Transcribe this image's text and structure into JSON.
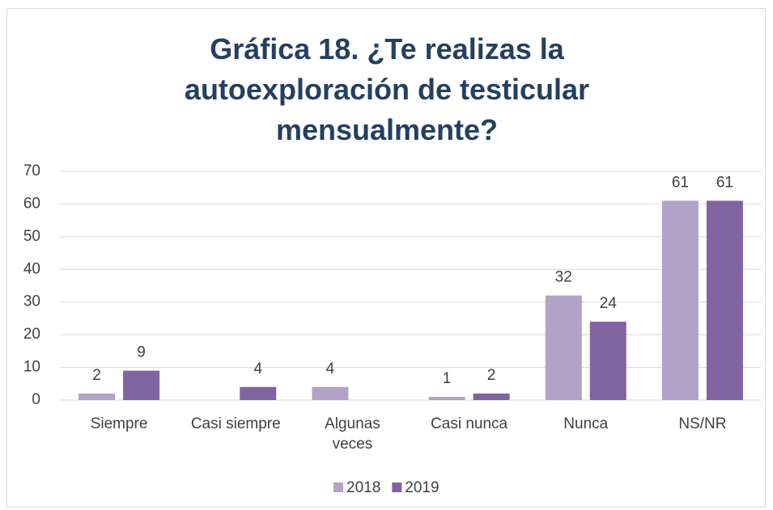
{
  "chart_data": {
    "type": "bar",
    "title": "Gráfica 18. ¿Te realizas la autoexploración de testicular mensualmente?",
    "categories": [
      "Siempre",
      "Casi siempre",
      "Algunas veces",
      "Casi nunca",
      "Nunca",
      "NS/NR"
    ],
    "series": [
      {
        "name": "2018",
        "color": "#b3a2c7",
        "values": [
          2,
          null,
          4,
          1,
          32,
          61
        ]
      },
      {
        "name": "2019",
        "color": "#8064a2",
        "values": [
          9,
          4,
          null,
          2,
          24,
          61
        ]
      }
    ],
    "ylim": [
      0,
      70
    ],
    "yticks": [
      0,
      10,
      20,
      30,
      40,
      50,
      60,
      70
    ],
    "grid": true,
    "legend": "bottom"
  }
}
